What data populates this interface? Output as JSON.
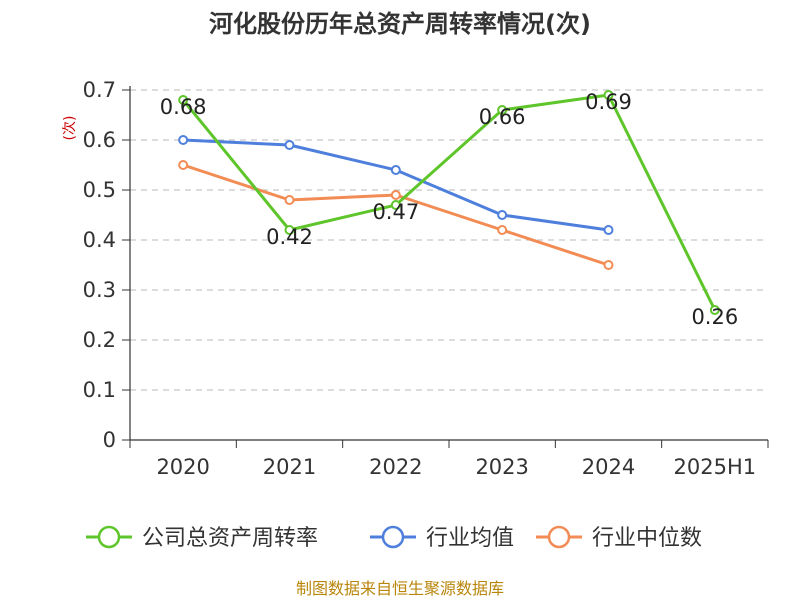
{
  "chart_data": {
    "type": "line",
    "title": "河化股份历年总资产周转率情况(次)",
    "ylabel": "(次)",
    "xlabel": "",
    "categories": [
      "2020",
      "2021",
      "2022",
      "2023",
      "2024",
      "2025H1"
    ],
    "ylim": [
      0,
      0.7
    ],
    "yticks": [
      "0",
      "0.1",
      "0.2",
      "0.3",
      "0.4",
      "0.5",
      "0.6",
      "0.7"
    ],
    "grid": true,
    "legend_position": "bottom",
    "series": [
      {
        "name": "公司总资产周转率",
        "color": "#5ec52a",
        "values": [
          0.68,
          0.42,
          0.47,
          0.66,
          0.69,
          0.26
        ],
        "labels": [
          "0.68",
          "0.42",
          "0.47",
          "0.66",
          "0.69",
          "0.26"
        ]
      },
      {
        "name": "行业均值",
        "color": "#4e7fdc",
        "values": [
          0.6,
          0.59,
          0.54,
          0.45,
          0.42,
          null
        ]
      },
      {
        "name": "行业中位数",
        "color": "#f28b54",
        "values": [
          0.55,
          0.48,
          0.49,
          0.42,
          0.35,
          null
        ]
      }
    ],
    "source": "制图数据来自恒生聚源数据库"
  }
}
